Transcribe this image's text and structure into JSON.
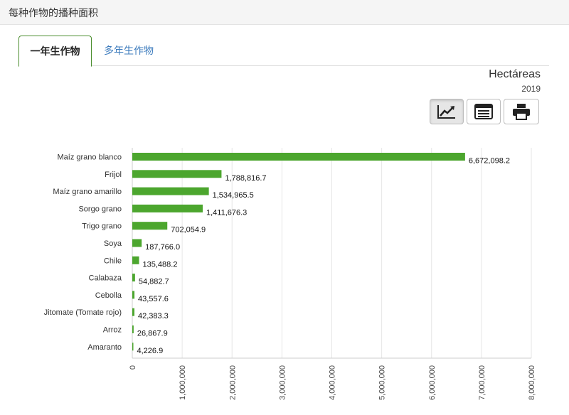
{
  "header": {
    "title": "每种作物的播种面积"
  },
  "tabs": [
    {
      "label": "一年生作物",
      "active": true
    },
    {
      "label": "多年生作物",
      "active": false
    }
  ],
  "unit_label": "Hectáreas",
  "year_label": "2019",
  "toolbar": {
    "buttons": [
      {
        "icon": "trend-chart-icon",
        "active": true
      },
      {
        "icon": "list-table-icon",
        "active": false
      },
      {
        "icon": "print-icon",
        "active": false
      }
    ]
  },
  "colors": {
    "bar": "#4ca62e",
    "accent": "#4a8d2e",
    "link": "#3c7bbd"
  },
  "chart_data": {
    "type": "bar",
    "orientation": "horizontal",
    "categories": [
      "Maíz grano blanco",
      "Frijol",
      "Maíz grano amarillo",
      "Sorgo grano",
      "Trigo grano",
      "Soya",
      "Chile",
      "Calabaza",
      "Cebolla",
      "Jitomate (Tomate rojo)",
      "Arroz",
      "Amaranto"
    ],
    "values": [
      6672098.2,
      1788816.7,
      1534965.5,
      1411676.3,
      702054.9,
      187766.0,
      135488.2,
      54882.7,
      43557.6,
      42383.3,
      26867.9,
      4226.9
    ],
    "value_labels": [
      "6,672,098.2",
      "1,788,816.7",
      "1,534,965.5",
      "1,411,676.3",
      "702,054.9",
      "187,766.0",
      "135,488.2",
      "54,882.7",
      "43,557.6",
      "42,383.3",
      "26,867.9",
      "4,226.9"
    ],
    "xlim": [
      0,
      8000000
    ],
    "ticks": [
      0,
      1000000,
      2000000,
      3000000,
      4000000,
      5000000,
      6000000,
      7000000,
      8000000
    ],
    "tick_labels": [
      "0",
      "1,000,000",
      "2,000,000",
      "3,000,000",
      "4,000,000",
      "5,000,000",
      "6,000,000",
      "7,000,000",
      "8,000,000"
    ],
    "grid": true,
    "legend": "none"
  }
}
